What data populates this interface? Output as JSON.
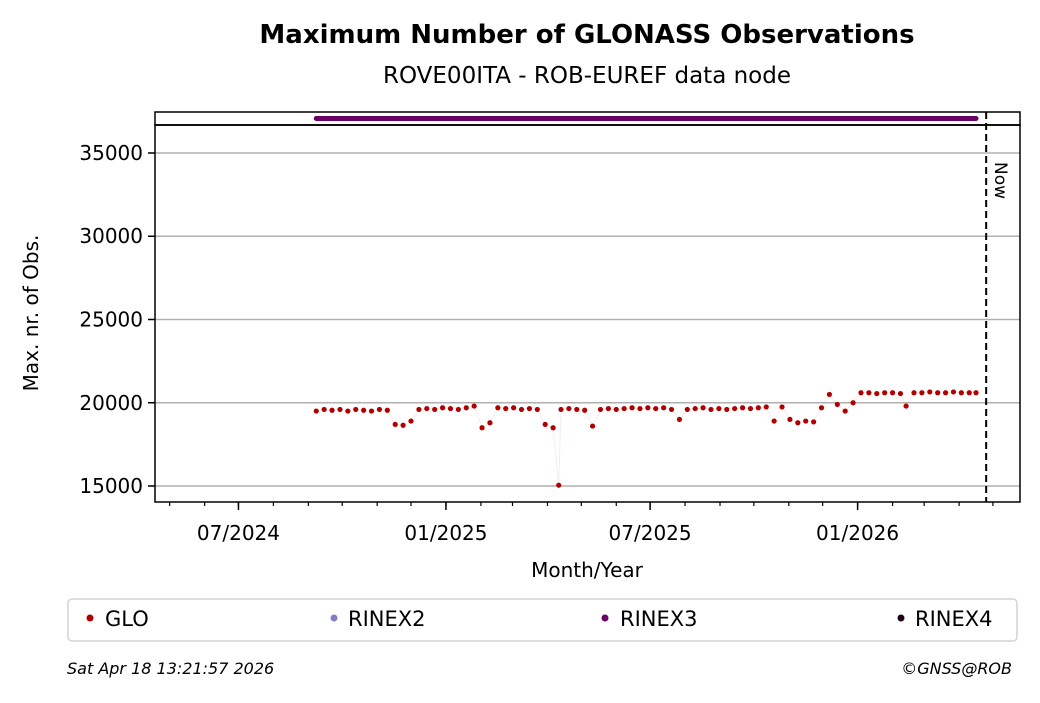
{
  "chart_data": {
    "type": "scatter",
    "title": "Maximum Number of GLONASS Observations",
    "subtitle": "ROVE00ITA - ROB-EUREF data node",
    "xlabel": "Month/Year",
    "ylabel": "Max. nr. of Obs.",
    "xlim": [
      "2024-04-18",
      "2026-05-25"
    ],
    "ylim": [
      14040,
      36680
    ],
    "x_ticks": [
      {
        "date": "2024-07-01",
        "label": "07/2024"
      },
      {
        "date": "2025-01-01",
        "label": "01/2025"
      },
      {
        "date": "2025-07-01",
        "label": "07/2025"
      },
      {
        "date": "2026-01-01",
        "label": "01/2026"
      }
    ],
    "y_ticks": [
      15000,
      20000,
      25000,
      30000,
      35000
    ],
    "grid": "horizontal",
    "now_line": {
      "date": "2026-04-25",
      "label": "Now"
    },
    "legend_placement": "bottom",
    "series": [
      {
        "name": "GLO",
        "color": "#b00000",
        "points": [
          [
            "2024-09-08",
            19500
          ],
          [
            "2024-09-15",
            19600
          ],
          [
            "2024-09-22",
            19550
          ],
          [
            "2024-09-29",
            19600
          ],
          [
            "2024-10-06",
            19500
          ],
          [
            "2024-10-13",
            19600
          ],
          [
            "2024-10-20",
            19550
          ],
          [
            "2024-10-27",
            19500
          ],
          [
            "2024-11-03",
            19600
          ],
          [
            "2024-11-10",
            19550
          ],
          [
            "2024-11-17",
            18700
          ],
          [
            "2024-11-24",
            18650
          ],
          [
            "2024-12-01",
            18900
          ],
          [
            "2024-12-08",
            19600
          ],
          [
            "2024-12-15",
            19650
          ],
          [
            "2024-12-22",
            19600
          ],
          [
            "2024-12-29",
            19700
          ],
          [
            "2025-01-05",
            19650
          ],
          [
            "2025-01-12",
            19600
          ],
          [
            "2025-01-19",
            19700
          ],
          [
            "2025-01-26",
            19800
          ],
          [
            "2025-02-02",
            18500
          ],
          [
            "2025-02-09",
            18800
          ],
          [
            "2025-02-16",
            19700
          ],
          [
            "2025-02-23",
            19650
          ],
          [
            "2025-03-02",
            19700
          ],
          [
            "2025-03-09",
            19600
          ],
          [
            "2025-03-16",
            19650
          ],
          [
            "2025-03-23",
            19600
          ],
          [
            "2025-03-30",
            18700
          ],
          [
            "2025-04-06",
            18500
          ],
          [
            "2025-04-11",
            15050
          ],
          [
            "2025-04-13",
            19600
          ],
          [
            "2025-04-20",
            19650
          ],
          [
            "2025-04-27",
            19600
          ],
          [
            "2025-05-04",
            19550
          ],
          [
            "2025-05-11",
            18600
          ],
          [
            "2025-05-18",
            19600
          ],
          [
            "2025-05-25",
            19650
          ],
          [
            "2025-06-01",
            19600
          ],
          [
            "2025-06-08",
            19650
          ],
          [
            "2025-06-15",
            19700
          ],
          [
            "2025-06-22",
            19650
          ],
          [
            "2025-06-29",
            19700
          ],
          [
            "2025-07-06",
            19650
          ],
          [
            "2025-07-13",
            19700
          ],
          [
            "2025-07-20",
            19600
          ],
          [
            "2025-07-27",
            19000
          ],
          [
            "2025-08-03",
            19600
          ],
          [
            "2025-08-10",
            19650
          ],
          [
            "2025-08-17",
            19700
          ],
          [
            "2025-08-24",
            19600
          ],
          [
            "2025-08-31",
            19650
          ],
          [
            "2025-09-07",
            19600
          ],
          [
            "2025-09-14",
            19650
          ],
          [
            "2025-09-21",
            19700
          ],
          [
            "2025-09-28",
            19650
          ],
          [
            "2025-10-05",
            19700
          ],
          [
            "2025-10-12",
            19750
          ],
          [
            "2025-10-19",
            18900
          ],
          [
            "2025-10-26",
            19750
          ],
          [
            "2025-11-02",
            19000
          ],
          [
            "2025-11-09",
            18800
          ],
          [
            "2025-11-16",
            18900
          ],
          [
            "2025-11-23",
            18850
          ],
          [
            "2025-11-30",
            19700
          ],
          [
            "2025-12-07",
            20500
          ],
          [
            "2025-12-14",
            19900
          ],
          [
            "2025-12-21",
            19500
          ],
          [
            "2025-12-28",
            20000
          ],
          [
            "2026-01-04",
            20600
          ],
          [
            "2026-01-11",
            20600
          ],
          [
            "2026-01-18",
            20550
          ],
          [
            "2026-01-25",
            20600
          ],
          [
            "2026-02-01",
            20600
          ],
          [
            "2026-02-08",
            20550
          ],
          [
            "2026-02-13",
            19800
          ],
          [
            "2026-02-20",
            20600
          ],
          [
            "2026-02-27",
            20600
          ],
          [
            "2026-03-06",
            20650
          ],
          [
            "2026-03-13",
            20600
          ],
          [
            "2026-03-20",
            20600
          ],
          [
            "2026-03-27",
            20650
          ],
          [
            "2026-04-03",
            20600
          ],
          [
            "2026-04-10",
            20600
          ],
          [
            "2026-04-16",
            20600
          ]
        ]
      },
      {
        "name": "RINEX2",
        "color": "#8080c0",
        "points": []
      },
      {
        "name": "RINEX3",
        "color": "#6a0066",
        "range": [
          "2024-09-08",
          "2026-04-16"
        ]
      },
      {
        "name": "RINEX4",
        "color": "#200018",
        "points": []
      }
    ]
  },
  "footer": {
    "timestamp": "Sat Apr 18 13:21:57 2026",
    "credit": "©GNSS@ROB"
  }
}
